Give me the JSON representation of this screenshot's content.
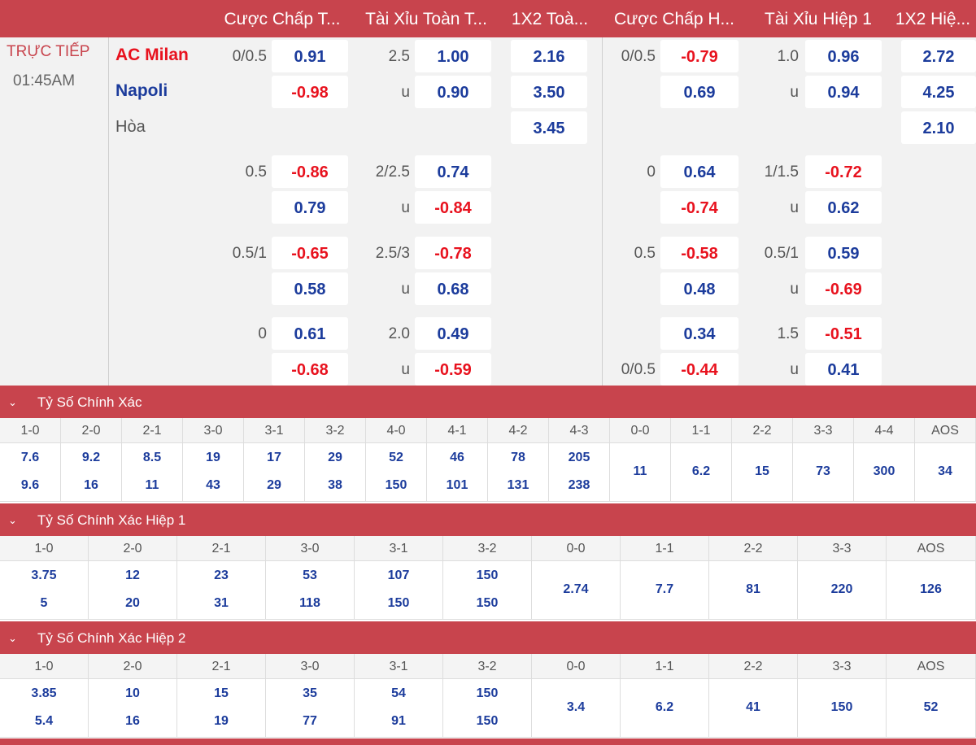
{
  "headers": [
    "Cược Chấp T...",
    "Tài Xỉu Toàn T...",
    "1X2 Toà...",
    "Cược Chấp H...",
    "Tài Xỉu Hiệp 1",
    "1X2 Hiệ..."
  ],
  "match": {
    "status": "TRỰC TIẾP",
    "time": "01:45AM",
    "home": "AC Milan",
    "away": "Napoli",
    "draw": "Hòa"
  },
  "rows": [
    {
      "hc_line": "0/0.5",
      "hc_odd": "0.91",
      "ou_line": "2.5",
      "ou_odd": "1.00",
      "x12": "2.16",
      "hc1_line": "0/0.5",
      "hc1_odd": "-0.79",
      "ou1_line": "1.0",
      "ou1_odd": "0.96",
      "x121": "2.72"
    },
    {
      "hc_line": "",
      "hc_odd": "-0.98",
      "ou_line": "u",
      "ou_odd": "0.90",
      "x12": "3.50",
      "hc1_line": "",
      "hc1_odd": "0.69",
      "ou1_line": "u",
      "ou1_odd": "0.94",
      "x121": "4.25"
    },
    {
      "hc_line": "",
      "hc_odd": "",
      "ou_line": "",
      "ou_odd": "",
      "x12": "3.45",
      "hc1_line": "",
      "hc1_odd": "",
      "ou1_line": "",
      "ou1_odd": "",
      "x121": "2.10"
    },
    {
      "hc_line": "0.5",
      "hc_odd": "-0.86",
      "ou_line": "2/2.5",
      "ou_odd": "0.74",
      "x12": "",
      "hc1_line": "0",
      "hc1_odd": "0.64",
      "ou1_line": "1/1.5",
      "ou1_odd": "-0.72",
      "x121": ""
    },
    {
      "hc_line": "",
      "hc_odd": "0.79",
      "ou_line": "u",
      "ou_odd": "-0.84",
      "x12": "",
      "hc1_line": "",
      "hc1_odd": "-0.74",
      "ou1_line": "u",
      "ou1_odd": "0.62",
      "x121": ""
    },
    {
      "hc_line": "0.5/1",
      "hc_odd": "-0.65",
      "ou_line": "2.5/3",
      "ou_odd": "-0.78",
      "x12": "",
      "hc1_line": "0.5",
      "hc1_odd": "-0.58",
      "ou1_line": "0.5/1",
      "ou1_odd": "0.59",
      "x121": ""
    },
    {
      "hc_line": "",
      "hc_odd": "0.58",
      "ou_line": "u",
      "ou_odd": "0.68",
      "x12": "",
      "hc1_line": "",
      "hc1_odd": "0.48",
      "ou1_line": "u",
      "ou1_odd": "-0.69",
      "x121": ""
    },
    {
      "hc_line": "0",
      "hc_odd": "0.61",
      "ou_line": "2.0",
      "ou_odd": "0.49",
      "x12": "",
      "hc1_line": "",
      "hc1_odd": "0.34",
      "ou1_line": "1.5",
      "ou1_odd": "-0.51",
      "x121": ""
    },
    {
      "hc_line": "",
      "hc_odd": "-0.68",
      "ou_line": "u",
      "ou_odd": "-0.59",
      "x12": "",
      "hc1_line": "0/0.5",
      "hc1_odd": "-0.44",
      "ou1_line": "u",
      "ou1_odd": "0.41",
      "x121": ""
    }
  ],
  "cs_full": {
    "title": "Tỷ Số Chính Xác",
    "scores": [
      "1-0",
      "2-0",
      "2-1",
      "3-0",
      "3-1",
      "3-2",
      "4-0",
      "4-1",
      "4-2",
      "4-3",
      "0-0",
      "1-1",
      "2-2",
      "3-3",
      "4-4",
      "AOS"
    ],
    "home": [
      "7.6",
      "9.2",
      "8.5",
      "19",
      "17",
      "29",
      "52",
      "46",
      "78",
      "205",
      "11",
      "6.2",
      "15",
      "73",
      "300",
      "34"
    ],
    "away": [
      "9.6",
      "16",
      "11",
      "43",
      "29",
      "38",
      "150",
      "101",
      "131",
      "238",
      "",
      "",
      "",
      "",
      "",
      ""
    ]
  },
  "cs_h1": {
    "title": "Tỷ Số Chính Xác Hiệp 1",
    "scores": [
      "1-0",
      "2-0",
      "2-1",
      "3-0",
      "3-1",
      "3-2",
      "0-0",
      "1-1",
      "2-2",
      "3-3",
      "AOS"
    ],
    "home": [
      "3.75",
      "12",
      "23",
      "53",
      "107",
      "150",
      "2.74",
      "7.7",
      "81",
      "220",
      "126"
    ],
    "away": [
      "5",
      "20",
      "31",
      "118",
      "150",
      "150",
      "",
      "",
      "",
      "",
      ""
    ]
  },
  "cs_h2": {
    "title": "Tỷ Số Chính Xác Hiệp 2",
    "scores": [
      "1-0",
      "2-0",
      "2-1",
      "3-0",
      "3-1",
      "3-2",
      "0-0",
      "1-1",
      "2-2",
      "3-3",
      "AOS"
    ],
    "home": [
      "3.85",
      "10",
      "15",
      "35",
      "54",
      "150",
      "3.4",
      "6.2",
      "41",
      "150",
      "52"
    ],
    "away": [
      "5.4",
      "16",
      "19",
      "77",
      "91",
      "150",
      "",
      "",
      "",
      "",
      ""
    ]
  },
  "colors": {
    "accent": "#c8444d",
    "positive": "#1c3c9c",
    "negative": "#e8121e"
  },
  "icons": {
    "collapse": "chevron-down-icon"
  }
}
